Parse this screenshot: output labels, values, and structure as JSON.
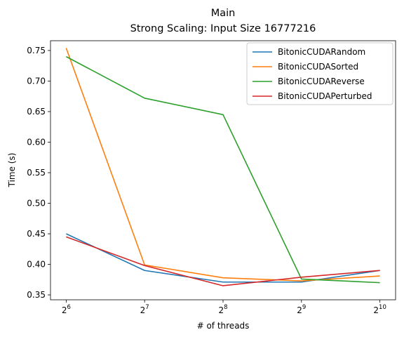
{
  "chart_data": {
    "type": "line",
    "title": "Main",
    "subtitle": "Strong Scaling: Input Size 16777216",
    "xlabel": "# of threads",
    "ylabel": "Time (s)",
    "x_scale": "log2",
    "x": [
      64,
      128,
      256,
      512,
      1024
    ],
    "x_tick_labels": [
      {
        "base": "2",
        "exp": "6"
      },
      {
        "base": "2",
        "exp": "7"
      },
      {
        "base": "2",
        "exp": "8"
      },
      {
        "base": "2",
        "exp": "9"
      },
      {
        "base": "2",
        "exp": "10"
      }
    ],
    "y_ticks": [
      "0.35",
      "0.40",
      "0.45",
      "0.50",
      "0.55",
      "0.60",
      "0.65",
      "0.70",
      "0.75"
    ],
    "ylim": [
      0.342,
      0.766
    ],
    "legend_position": "upper right",
    "grid": false,
    "series": [
      {
        "name": "BitonicCUDARandom",
        "color": "#1f77b4",
        "values": [
          0.45,
          0.39,
          0.371,
          0.371,
          0.39
        ]
      },
      {
        "name": "BitonicCUDASorted",
        "color": "#ff7f0e",
        "values": [
          0.754,
          0.399,
          0.378,
          0.373,
          0.381
        ]
      },
      {
        "name": "BitonicCUDAReverse",
        "color": "#2ca02c",
        "values": [
          0.74,
          0.672,
          0.645,
          0.376,
          0.37
        ]
      },
      {
        "name": "BitonicCUDAPerturbed",
        "color": "#d62728",
        "values": [
          0.445,
          0.398,
          0.365,
          0.379,
          0.39
        ]
      }
    ]
  }
}
